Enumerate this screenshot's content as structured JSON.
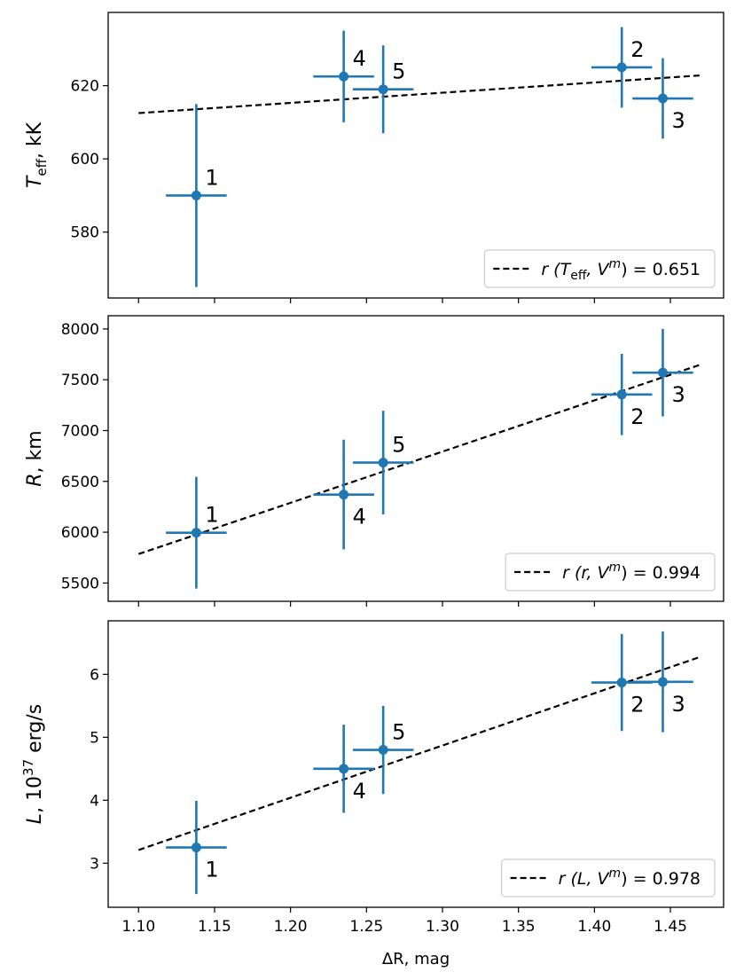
{
  "chart_data": [
    {
      "type": "scatter",
      "ylabel": {
        "main": "T",
        "sub": "eff",
        "suffix": ", kK"
      },
      "ylim": [
        562,
        640
      ],
      "yticks": [
        580,
        600,
        620
      ],
      "xlim": [
        1.08,
        1.485
      ],
      "points": [
        {
          "label": "1",
          "x": 1.138,
          "y": 590,
          "xerr": 0.02,
          "yerr": 25,
          "label_pos": "upper-right"
        },
        {
          "label": "2",
          "x": 1.418,
          "y": 625,
          "xerr": 0.02,
          "yerr": 11,
          "label_pos": "upper-right"
        },
        {
          "label": "3",
          "x": 1.445,
          "y": 616.5,
          "xerr": 0.02,
          "yerr": 11,
          "label_pos": "lower-right"
        },
        {
          "label": "4",
          "x": 1.235,
          "y": 622.5,
          "xerr": 0.02,
          "yerr": 12.5,
          "label_pos": "upper-right"
        },
        {
          "label": "5",
          "x": 1.261,
          "y": 619,
          "xerr": 0.02,
          "yerr": 12,
          "label_pos": "upper-right"
        }
      ],
      "fit": {
        "x": [
          1.1,
          1.47
        ],
        "y": [
          612.5,
          622.8
        ]
      },
      "legend": {
        "prefix": "r (T",
        "sub": "eff",
        "mid": ", V",
        "sup": "m",
        "suffix": ") = 0.651",
        "placement": "lower-right"
      }
    },
    {
      "type": "scatter",
      "ylabel": {
        "main": "R",
        "suffix": ", km"
      },
      "ylim": [
        5320,
        8130
      ],
      "yticks": [
        5500,
        6000,
        6500,
        7000,
        7500,
        8000
      ],
      "xlim": [
        1.08,
        1.485
      ],
      "points": [
        {
          "label": "1",
          "x": 1.138,
          "y": 5995,
          "xerr": 0.02,
          "yerr": 550,
          "label_pos": "upper-right"
        },
        {
          "label": "2",
          "x": 1.418,
          "y": 7355,
          "xerr": 0.02,
          "yerr": 400,
          "label_pos": "lower-right"
        },
        {
          "label": "3",
          "x": 1.445,
          "y": 7570,
          "xerr": 0.02,
          "yerr": 430,
          "label_pos": "lower-right"
        },
        {
          "label": "4",
          "x": 1.235,
          "y": 6370,
          "xerr": 0.02,
          "yerr": 540,
          "label_pos": "lower-right"
        },
        {
          "label": "5",
          "x": 1.261,
          "y": 6685,
          "xerr": 0.02,
          "yerr": 510,
          "label_pos": "upper-right"
        }
      ],
      "fit": {
        "x": [
          1.1,
          1.47
        ],
        "y": [
          5785,
          7650
        ]
      },
      "legend": {
        "prefix": "r (r, V",
        "sup": "m",
        "suffix": ") = 0.994",
        "placement": "lower-right"
      }
    },
    {
      "type": "scatter",
      "ylabel": {
        "main": "L",
        "suffix": ", 10",
        "sup": "37",
        "tail": " erg/s"
      },
      "ylim": [
        2.3,
        6.85
      ],
      "yticks": [
        3,
        4,
        5,
        6
      ],
      "xlim": [
        1.08,
        1.485
      ],
      "xticks": [
        1.1,
        1.15,
        1.2,
        1.25,
        1.3,
        1.35,
        1.4,
        1.45
      ],
      "xtick_labels": [
        "1.10",
        "1.15",
        "1.20",
        "1.25",
        "1.30",
        "1.35",
        "1.40",
        "1.45"
      ],
      "xlabel": "ΔR, mag",
      "points": [
        {
          "label": "1",
          "x": 1.138,
          "y": 3.25,
          "xerr": 0.02,
          "yerr": 0.74,
          "label_pos": "lower-right"
        },
        {
          "label": "2",
          "x": 1.418,
          "y": 5.87,
          "xerr": 0.02,
          "yerr": 0.77,
          "label_pos": "lower-right"
        },
        {
          "label": "3",
          "x": 1.445,
          "y": 5.88,
          "xerr": 0.02,
          "yerr": 0.8,
          "label_pos": "lower-right"
        },
        {
          "label": "4",
          "x": 1.235,
          "y": 4.5,
          "xerr": 0.02,
          "yerr": 0.7,
          "label_pos": "lower-right"
        },
        {
          "label": "5",
          "x": 1.261,
          "y": 4.8,
          "xerr": 0.02,
          "yerr": 0.7,
          "label_pos": "upper-right"
        }
      ],
      "fit": {
        "x": [
          1.1,
          1.47
        ],
        "y": [
          3.21,
          6.28
        ]
      },
      "legend": {
        "prefix": "r (L, V",
        "sup": "m",
        "suffix": ") = 0.978",
        "placement": "lower-right"
      }
    }
  ],
  "colors": {
    "series": "#1f77b4",
    "fit": "#000000",
    "axes": "#000000"
  }
}
